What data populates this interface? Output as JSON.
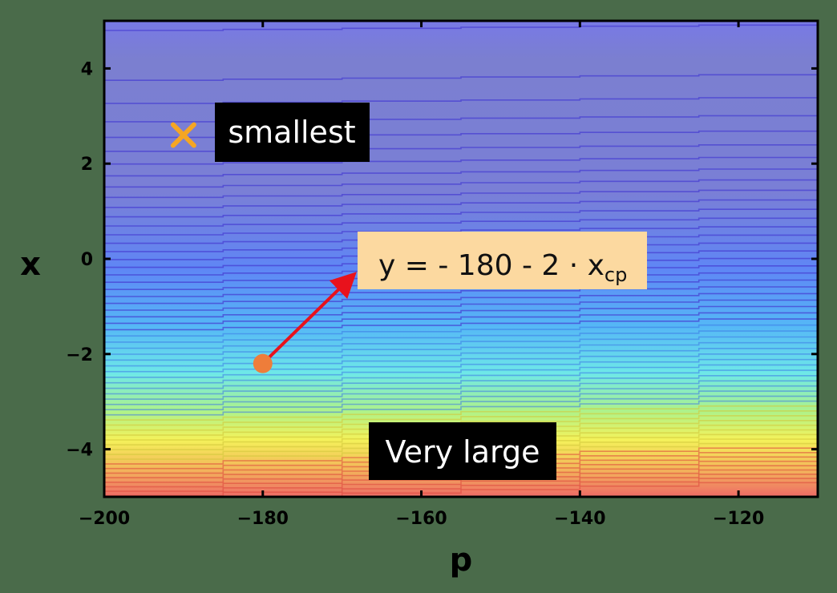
{
  "chart_data": {
    "type": "heatmap",
    "title": "",
    "xlabel": "p",
    "ylabel": "x",
    "xlim": [
      -200,
      -110
    ],
    "ylim": [
      -5,
      5
    ],
    "x_ticks": [
      -200,
      -180,
      -160,
      -140,
      -120
    ],
    "y_ticks": [
      4,
      2,
      0,
      -2,
      -4
    ],
    "x_tick_labels": [
      "−200",
      "−180",
      "−160",
      "−140",
      "−120"
    ],
    "y_tick_labels": [
      "4",
      "2",
      "0",
      "−2",
      "−4"
    ],
    "grid": false,
    "colormap": [
      "#7b7fd0",
      "#6e78ee",
      "#5f86f5",
      "#55b7f6",
      "#6ee8e8",
      "#aef28a",
      "#f4f25a",
      "#f3b95a",
      "#ee6a66"
    ],
    "annotations": {
      "min_marker": {
        "x": -190,
        "y": 2.6,
        "label": "smallest",
        "color": "#f5a623"
      },
      "point": {
        "x": -180,
        "y": -2.2,
        "color": "#ee7d3a"
      },
      "equation": {
        "text": "y = - 180 - 2 · x",
        "subscript": "cp",
        "box_color": "#fcd9a0"
      },
      "large_label": {
        "text": "Very large"
      },
      "arrow_color": "#e8121c"
    }
  }
}
